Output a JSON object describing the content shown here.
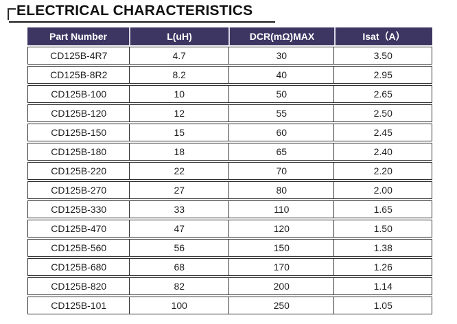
{
  "page": {
    "title": "ELECTRICAL CHARACTERISTICS"
  },
  "colors": {
    "header_bg": "#3d3663",
    "header_text": "#ffffff",
    "row_border": "#2e2e2e",
    "text": "#1f1f1f"
  },
  "table": {
    "headers": [
      "Part Number",
      "L(uH)",
      "DCR(mΩ)MAX",
      "Isat（A）"
    ],
    "rows": [
      [
        "CD125B-4R7",
        "4.7",
        "30",
        "3.50"
      ],
      [
        "CD125B-8R2",
        "8.2",
        "40",
        "2.95"
      ],
      [
        "CD125B-100",
        "10",
        "50",
        "2.65"
      ],
      [
        "CD125B-120",
        "12",
        "55",
        "2.50"
      ],
      [
        "CD125B-150",
        "15",
        "60",
        "2.45"
      ],
      [
        "CD125B-180",
        "18",
        "65",
        "2.40"
      ],
      [
        "CD125B-220",
        "22",
        "70",
        "2.20"
      ],
      [
        "CD125B-270",
        "27",
        "80",
        "2.00"
      ],
      [
        "CD125B-330",
        "33",
        "110",
        "1.65"
      ],
      [
        "CD125B-470",
        "47",
        "120",
        "1.50"
      ],
      [
        "CD125B-560",
        "56",
        "150",
        "1.38"
      ],
      [
        "CD125B-680",
        "68",
        "170",
        "1.26"
      ],
      [
        "CD125B-820",
        "82",
        "200",
        "1.14"
      ],
      [
        "CD125B-101",
        "100",
        "250",
        "1.05"
      ]
    ]
  }
}
